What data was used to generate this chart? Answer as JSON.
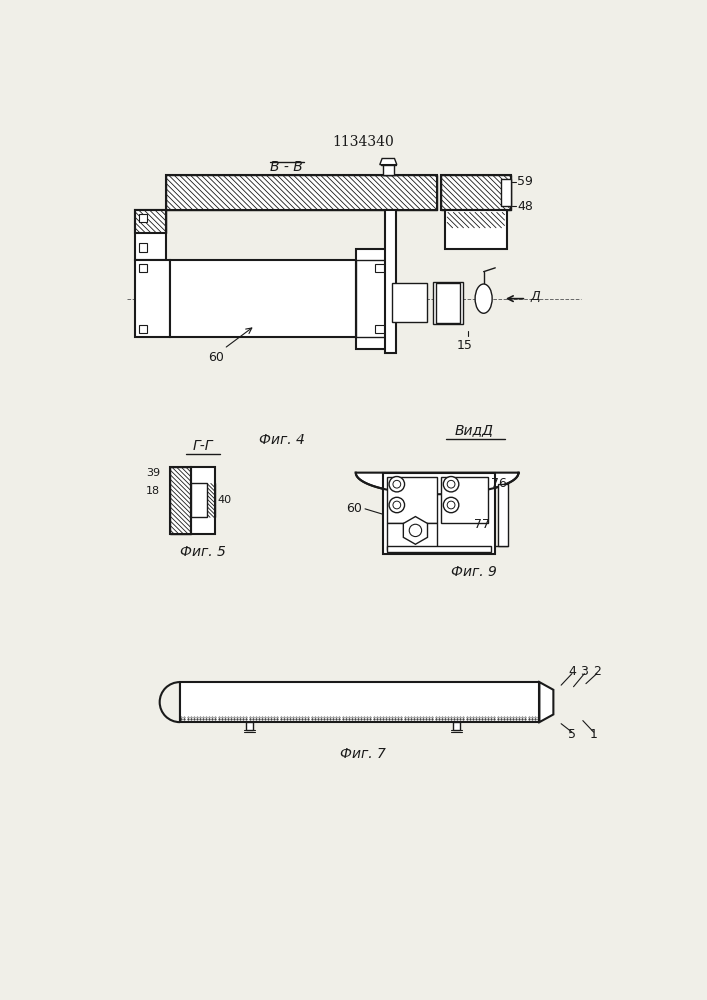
{
  "title": "1134340",
  "bg_color": "#f0efe8",
  "line_color": "#1a1a1a",
  "fig_labels": {
    "fig4": "Фиг. 4",
    "fig5": "Фиг. 5",
    "fig6": "Фиг. 9",
    "fig7": "Фиг. 7"
  },
  "section_labels": {
    "BB": "B - B",
    "GG": "Г-Г",
    "VidD": "ВидД"
  }
}
